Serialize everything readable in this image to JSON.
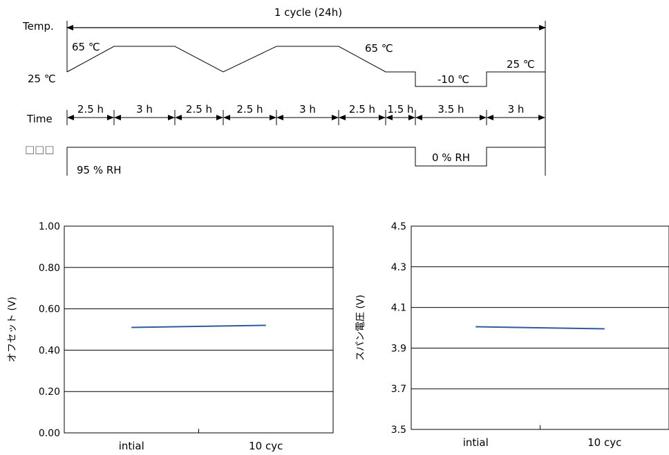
{
  "profile": {
    "cycle_label": "1 cycle (24h)",
    "temp_axis_label": "Temp.",
    "time_axis_label": "Time",
    "humidity_axis_label": "□□□",
    "temp_labels": [
      "65 ℃",
      "25 ℃",
      "65 ℃",
      "-10 ℃",
      "25 ℃"
    ],
    "durations": [
      "2.5 h",
      "3 h",
      "2.5 h",
      "2.5 h",
      "3 h",
      "2.5 h",
      "1.5 h",
      "3.5 h",
      "3 h"
    ],
    "humidity_labels": [
      "95 % RH",
      "0 % RH"
    ]
  },
  "chart_data": [
    {
      "type": "line",
      "categories": [
        "intial",
        "10 cyc"
      ],
      "series": [
        {
          "values": [
            0.51,
            0.52
          ],
          "color": "#2c5aa0"
        }
      ],
      "ylabel": "オフセット (V)",
      "ylim": [
        0,
        1.0
      ],
      "yticks": [
        "0.00",
        "0.20",
        "0.40",
        "0.60",
        "0.80",
        "1.00"
      ],
      "grid": true
    },
    {
      "type": "line",
      "categories": [
        "intial",
        "10 cyc"
      ],
      "series": [
        {
          "values": [
            4.005,
            3.995
          ],
          "color": "#2c5aa0"
        }
      ],
      "ylabel": "スパン電圧 (V)",
      "ylim": [
        3.5,
        4.5
      ],
      "yticks": [
        "3.5",
        "3.7",
        "3.9",
        "4.1",
        "4.3",
        "4.5"
      ],
      "grid": true
    }
  ]
}
